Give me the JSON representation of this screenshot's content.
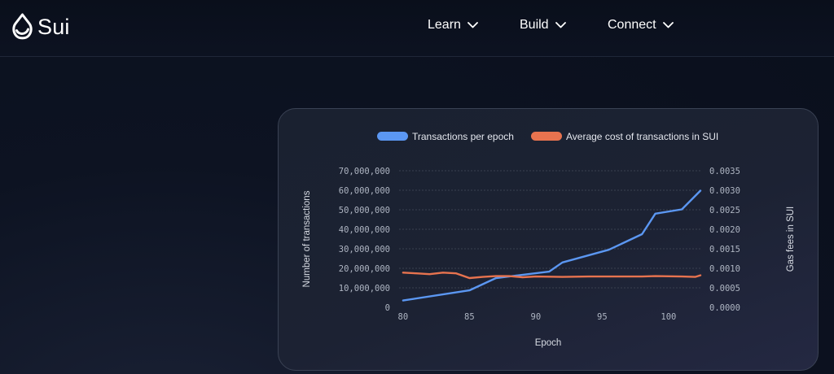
{
  "nav": {
    "brand": "Sui",
    "items": [
      {
        "label": "Learn"
      },
      {
        "label": "Build"
      },
      {
        "label": "Connect"
      }
    ]
  },
  "colors": {
    "series_primary": "#5b97f2",
    "series_secondary": "#e7734f",
    "grid": "#3a4150"
  },
  "chart_data": {
    "type": "line",
    "title": "",
    "xlabel": "Epoch",
    "ylabel": "Number of transactions",
    "y2label": "Gas fees in SUI",
    "xlim": [
      79.7,
      102.4
    ],
    "ylim": [
      0,
      70000000
    ],
    "y2lim": [
      0,
      0.0035
    ],
    "x_ticks": [
      80,
      85,
      90,
      95,
      100
    ],
    "y_ticks": [
      {
        "value": 0,
        "label": "0"
      },
      {
        "value": 10000000,
        "label": "10,000,000"
      },
      {
        "value": 20000000,
        "label": "20,000,000"
      },
      {
        "value": 30000000,
        "label": "30,000,000"
      },
      {
        "value": 40000000,
        "label": "40,000,000"
      },
      {
        "value": 50000000,
        "label": "50,000,000"
      },
      {
        "value": 60000000,
        "label": "60,000,000"
      },
      {
        "value": 70000000,
        "label": "70,000,000"
      }
    ],
    "y2_ticks": [
      {
        "value": 0,
        "label": "0.0000"
      },
      {
        "value": 0.0005,
        "label": "0.0005"
      },
      {
        "value": 0.001,
        "label": "0.0010"
      },
      {
        "value": 0.0015,
        "label": "0.0015"
      },
      {
        "value": 0.002,
        "label": "0.0020"
      },
      {
        "value": 0.0025,
        "label": "0.0025"
      },
      {
        "value": 0.003,
        "label": "0.0030"
      },
      {
        "value": 0.0035,
        "label": "0.0035"
      }
    ],
    "grid": true,
    "legend_position": "top-center",
    "series": [
      {
        "name": "Transactions per epoch",
        "axis": "left",
        "color": "#5b97f2",
        "x": [
          80,
          85,
          87,
          91,
          92,
          95.5,
          98,
          99,
          101,
          102.4
        ],
        "values": [
          3500000,
          8700000,
          15000000,
          18300000,
          23000000,
          29500000,
          37500000,
          48000000,
          50200000,
          59800000
        ]
      },
      {
        "name": "Average cost of transactions in SUI",
        "axis": "right",
        "color": "#e7734f",
        "x": [
          80,
          81,
          82,
          83,
          84,
          85,
          86,
          87,
          88,
          89,
          90,
          92,
          94,
          96,
          98,
          99,
          101,
          102,
          102.4
        ],
        "values": [
          0.00089,
          0.00087,
          0.00085,
          0.00089,
          0.00087,
          0.00075,
          0.00078,
          0.0008,
          0.0008,
          0.00077,
          0.00079,
          0.00078,
          0.00079,
          0.00079,
          0.00079,
          0.0008,
          0.00079,
          0.00078,
          0.00082
        ]
      }
    ]
  }
}
